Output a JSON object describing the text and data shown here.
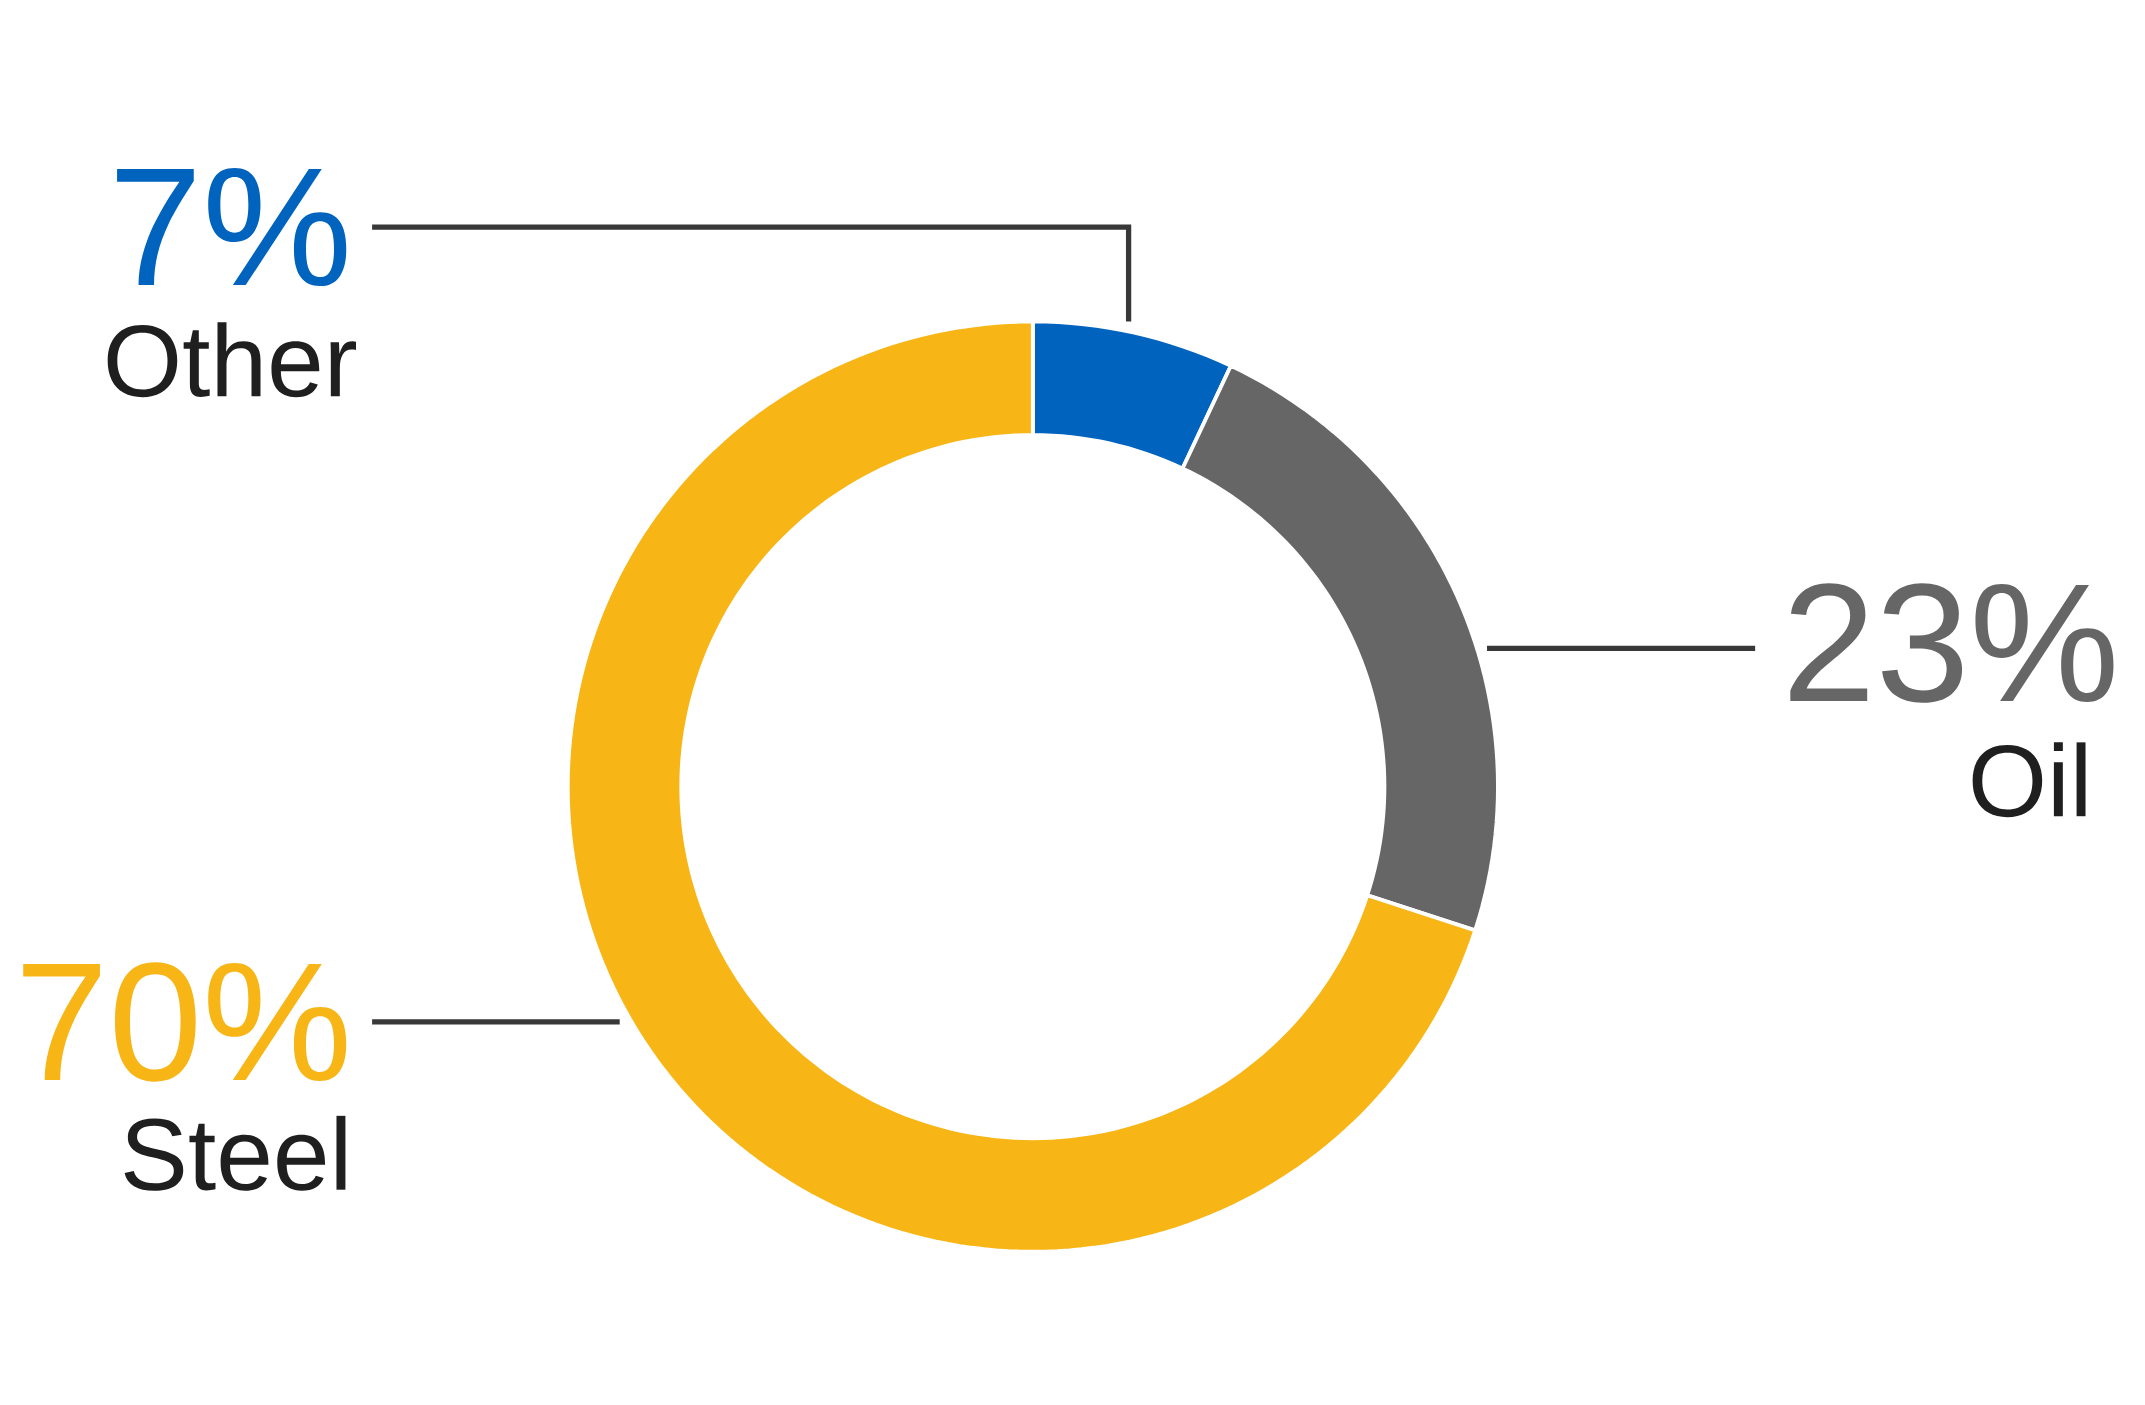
{
  "chart_data": {
    "type": "donut",
    "categories": [
      "Other",
      "Oil",
      "Steel"
    ],
    "values": [
      7,
      23,
      70
    ],
    "value_labels": [
      "7%",
      "23%",
      "70%"
    ],
    "colors": [
      "#0063be",
      "#666666",
      "#f7b516"
    ]
  }
}
